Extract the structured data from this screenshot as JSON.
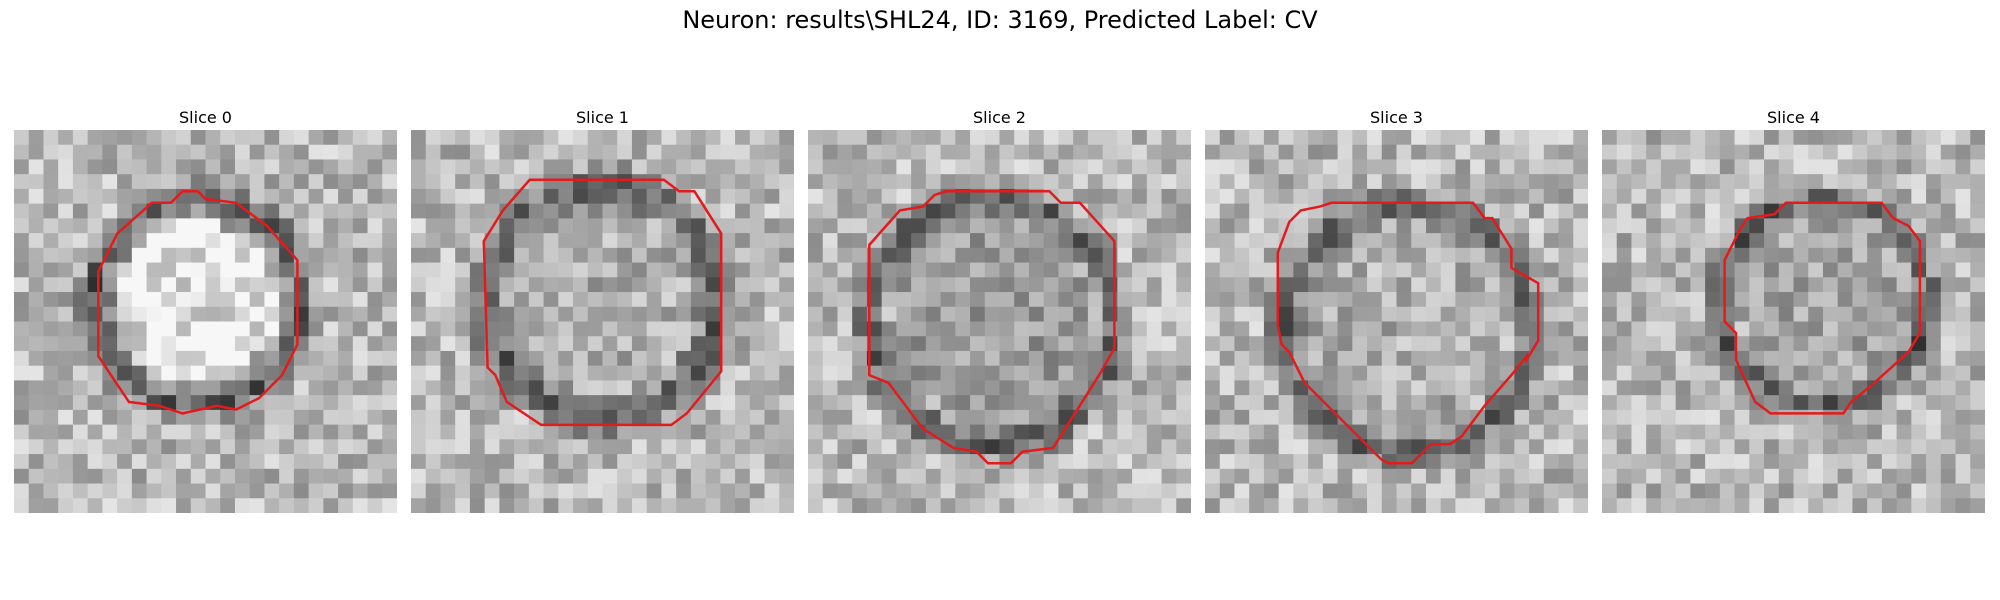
{
  "figure": {
    "title": "Neuron: results\\SHL24, ID: 3169, Predicted Label: CV",
    "contour_color": "#e41a1c",
    "colormap": "gray",
    "panels": [
      {
        "title": "Slice 0",
        "contour": [
          [
            0.44,
            0.16
          ],
          [
            0.48,
            0.16
          ],
          [
            0.5,
            0.18
          ],
          [
            0.58,
            0.19
          ],
          [
            0.66,
            0.25
          ],
          [
            0.74,
            0.34
          ],
          [
            0.74,
            0.56
          ],
          [
            0.7,
            0.64
          ],
          [
            0.64,
            0.7
          ],
          [
            0.58,
            0.73
          ],
          [
            0.53,
            0.72
          ],
          [
            0.44,
            0.74
          ],
          [
            0.38,
            0.72
          ],
          [
            0.3,
            0.71
          ],
          [
            0.24,
            0.62
          ],
          [
            0.22,
            0.59
          ],
          [
            0.22,
            0.37
          ],
          [
            0.27,
            0.27
          ],
          [
            0.36,
            0.19
          ],
          [
            0.41,
            0.19
          ]
        ]
      },
      {
        "title": "Slice 1",
        "contour": [
          [
            0.31,
            0.13
          ],
          [
            0.66,
            0.13
          ],
          [
            0.7,
            0.16
          ],
          [
            0.74,
            0.16
          ],
          [
            0.81,
            0.27
          ],
          [
            0.81,
            0.63
          ],
          [
            0.72,
            0.74
          ],
          [
            0.68,
            0.77
          ],
          [
            0.34,
            0.77
          ],
          [
            0.25,
            0.71
          ],
          [
            0.22,
            0.64
          ],
          [
            0.2,
            0.62
          ],
          [
            0.19,
            0.29
          ],
          [
            0.24,
            0.21
          ]
        ]
      },
      {
        "title": "Slice 2",
        "contour": [
          [
            0.33,
            0.17
          ],
          [
            0.36,
            0.16
          ],
          [
            0.63,
            0.16
          ],
          [
            0.66,
            0.19
          ],
          [
            0.71,
            0.19
          ],
          [
            0.8,
            0.29
          ],
          [
            0.8,
            0.57
          ],
          [
            0.76,
            0.64
          ],
          [
            0.64,
            0.83
          ],
          [
            0.56,
            0.84
          ],
          [
            0.53,
            0.87
          ],
          [
            0.47,
            0.87
          ],
          [
            0.44,
            0.84
          ],
          [
            0.38,
            0.83
          ],
          [
            0.3,
            0.78
          ],
          [
            0.21,
            0.66
          ],
          [
            0.16,
            0.64
          ],
          [
            0.16,
            0.3
          ],
          [
            0.24,
            0.21
          ],
          [
            0.3,
            0.2
          ]
        ]
      },
      {
        "title": "Slice 3",
        "contour": [
          [
            0.3,
            0.2
          ],
          [
            0.33,
            0.19
          ],
          [
            0.7,
            0.19
          ],
          [
            0.73,
            0.23
          ],
          [
            0.75,
            0.23
          ],
          [
            0.8,
            0.31
          ],
          [
            0.8,
            0.36
          ],
          [
            0.87,
            0.4
          ],
          [
            0.87,
            0.55
          ],
          [
            0.84,
            0.6
          ],
          [
            0.84,
            0.59
          ],
          [
            0.8,
            0.64
          ],
          [
            0.73,
            0.72
          ],
          [
            0.67,
            0.8
          ],
          [
            0.64,
            0.82
          ],
          [
            0.59,
            0.82
          ],
          [
            0.54,
            0.87
          ],
          [
            0.48,
            0.87
          ],
          [
            0.46,
            0.86
          ],
          [
            0.43,
            0.83
          ],
          [
            0.37,
            0.77
          ],
          [
            0.32,
            0.72
          ],
          [
            0.26,
            0.66
          ],
          [
            0.22,
            0.58
          ],
          [
            0.2,
            0.56
          ],
          [
            0.19,
            0.51
          ],
          [
            0.19,
            0.32
          ],
          [
            0.22,
            0.24
          ],
          [
            0.25,
            0.21
          ]
        ]
      },
      {
        "title": "Slice 4",
        "contour": [
          [
            0.48,
            0.19
          ],
          [
            0.73,
            0.19
          ],
          [
            0.76,
            0.23
          ],
          [
            0.8,
            0.25
          ],
          [
            0.83,
            0.29
          ],
          [
            0.83,
            0.53
          ],
          [
            0.8,
            0.58
          ],
          [
            0.7,
            0.67
          ],
          [
            0.65,
            0.71
          ],
          [
            0.63,
            0.74
          ],
          [
            0.44,
            0.74
          ],
          [
            0.4,
            0.71
          ],
          [
            0.35,
            0.6
          ],
          [
            0.35,
            0.53
          ],
          [
            0.32,
            0.5
          ],
          [
            0.32,
            0.34
          ],
          [
            0.36,
            0.26
          ],
          [
            0.38,
            0.23
          ],
          [
            0.45,
            0.22
          ]
        ]
      }
    ]
  }
}
